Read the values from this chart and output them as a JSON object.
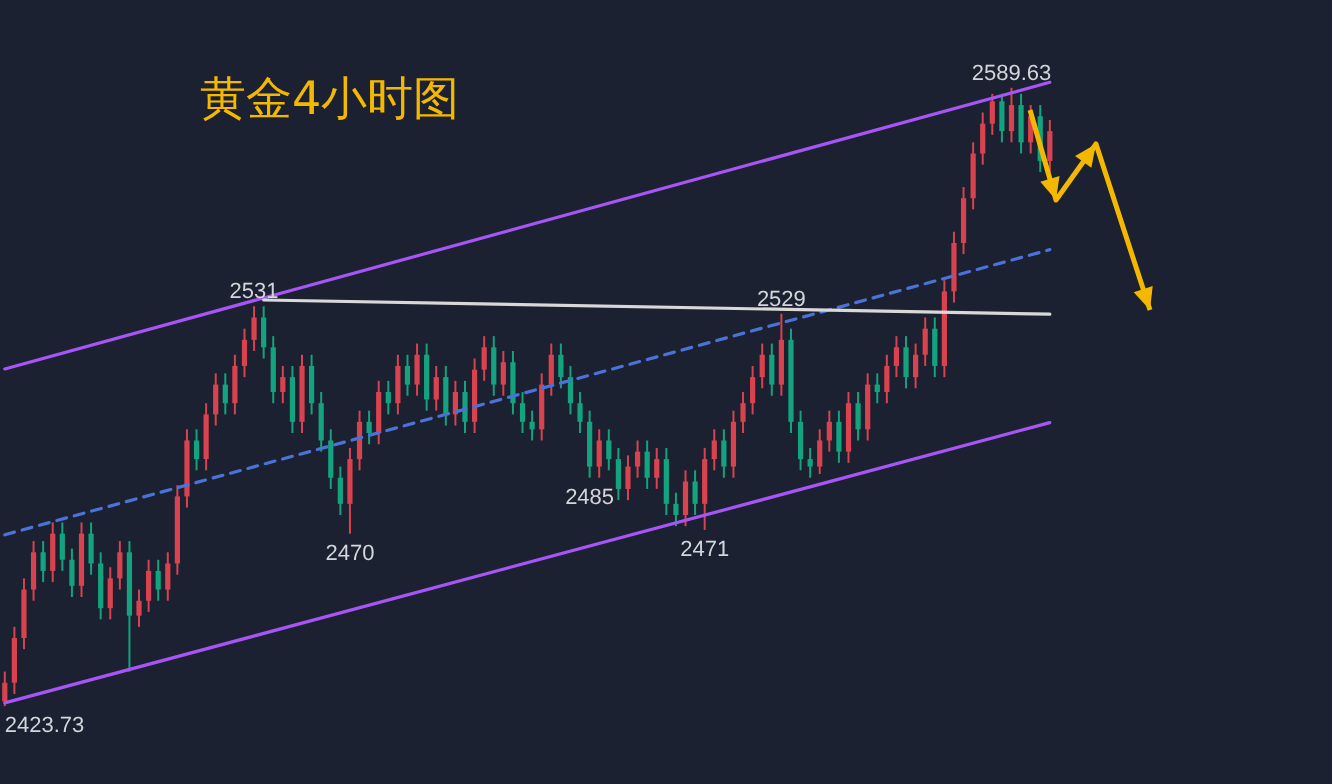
{
  "chart_data": {
    "type": "candlestick",
    "title": "黄金4小时图",
    "categories": [
      null,
      null,
      null,
      null,
      null,
      null,
      null,
      null,
      null,
      null,
      null,
      null,
      null,
      null,
      null,
      null,
      null,
      null,
      null,
      null,
      null,
      null,
      null,
      null,
      null,
      null,
      null,
      null,
      null,
      null,
      null,
      null,
      null,
      null,
      null,
      null,
      null,
      null,
      null,
      null,
      null,
      null,
      null,
      null,
      null,
      null,
      null,
      null,
      null,
      null,
      null,
      null,
      null,
      null,
      null,
      null,
      null,
      null,
      null,
      null,
      null,
      null,
      null,
      null,
      null,
      null,
      null,
      null,
      null,
      null,
      null,
      null,
      null,
      null,
      null,
      null,
      null,
      null,
      null,
      null,
      null,
      null,
      null,
      null,
      null,
      null,
      null,
      null,
      null,
      null,
      null,
      null,
      null,
      null,
      null,
      null,
      null,
      null,
      null,
      null,
      null,
      null,
      null,
      null,
      null,
      null,
      null,
      null,
      null,
      null
    ],
    "ohlc": [
      [
        2425,
        2433,
        2423.73,
        2430
      ],
      [
        2430,
        2445,
        2427,
        2442
      ],
      [
        2442,
        2458,
        2439,
        2455
      ],
      [
        2455,
        2468,
        2452,
        2465
      ],
      [
        2465,
        2468,
        2457,
        2460
      ],
      [
        2460,
        2473,
        2457,
        2470
      ],
      [
        2470,
        2473,
        2460,
        2463
      ],
      [
        2463,
        2466,
        2453,
        2456
      ],
      [
        2456,
        2473,
        2453,
        2470
      ],
      [
        2470,
        2473,
        2459,
        2462
      ],
      [
        2462,
        2465,
        2447,
        2450
      ],
      [
        2450,
        2461,
        2447,
        2458
      ],
      [
        2458,
        2468,
        2455,
        2465
      ],
      [
        2465,
        2468,
        2433,
        2448
      ],
      [
        2448,
        2455,
        2445,
        2452
      ],
      [
        2452,
        2463,
        2449,
        2460
      ],
      [
        2460,
        2463,
        2452,
        2455
      ],
      [
        2455,
        2465,
        2452,
        2462
      ],
      [
        2462,
        2483,
        2459,
        2480
      ],
      [
        2480,
        2498,
        2477,
        2495
      ],
      [
        2495,
        2498,
        2487,
        2490
      ],
      [
        2490,
        2505,
        2487,
        2502
      ],
      [
        2502,
        2513,
        2499,
        2510
      ],
      [
        2510,
        2513,
        2502,
        2505
      ],
      [
        2505,
        2518,
        2502,
        2515
      ],
      [
        2515,
        2525,
        2512,
        2522
      ],
      [
        2522,
        2531,
        2519,
        2528
      ],
      [
        2528,
        2531,
        2517,
        2520
      ],
      [
        2520,
        2523,
        2505,
        2508
      ],
      [
        2508,
        2515,
        2505,
        2512
      ],
      [
        2512,
        2515,
        2497,
        2500
      ],
      [
        2500,
        2518,
        2497,
        2515
      ],
      [
        2515,
        2518,
        2502,
        2505
      ],
      [
        2505,
        2508,
        2492,
        2495
      ],
      [
        2495,
        2498,
        2482,
        2485
      ],
      [
        2485,
        2488,
        2475,
        2478
      ],
      [
        2478,
        2493,
        2470,
        2490
      ],
      [
        2490,
        2503,
        2487,
        2500
      ],
      [
        2500,
        2503,
        2494,
        2497
      ],
      [
        2497,
        2511,
        2494,
        2508
      ],
      [
        2508,
        2511,
        2502,
        2505
      ],
      [
        2505,
        2518,
        2502,
        2515
      ],
      [
        2515,
        2518,
        2507,
        2510
      ],
      [
        2510,
        2521,
        2507,
        2518
      ],
      [
        2518,
        2521,
        2503,
        2506
      ],
      [
        2506,
        2515,
        2503,
        2512
      ],
      [
        2512,
        2515,
        2499,
        2502
      ],
      [
        2502,
        2511,
        2499,
        2508
      ],
      [
        2508,
        2511,
        2497,
        2500
      ],
      [
        2500,
        2517,
        2497,
        2514
      ],
      [
        2514,
        2523,
        2511,
        2520
      ],
      [
        2520,
        2523,
        2507,
        2510
      ],
      [
        2510,
        2519,
        2507,
        2516
      ],
      [
        2516,
        2519,
        2502,
        2505
      ],
      [
        2505,
        2508,
        2497,
        2500
      ],
      [
        2500,
        2503,
        2495,
        2498
      ],
      [
        2498,
        2513,
        2495,
        2510
      ],
      [
        2510,
        2521,
        2507,
        2518
      ],
      [
        2518,
        2521,
        2509,
        2512
      ],
      [
        2512,
        2515,
        2502,
        2505
      ],
      [
        2505,
        2508,
        2497,
        2500
      ],
      [
        2500,
        2503,
        2485,
        2488
      ],
      [
        2488,
        2498,
        2485,
        2495
      ],
      [
        2495,
        2498,
        2487,
        2490
      ],
      [
        2490,
        2493,
        2479,
        2482
      ],
      [
        2482,
        2491,
        2479,
        2488
      ],
      [
        2488,
        2495,
        2485,
        2492
      ],
      [
        2492,
        2495,
        2482,
        2485
      ],
      [
        2485,
        2493,
        2482,
        2490
      ],
      [
        2490,
        2493,
        2475,
        2478
      ],
      [
        2478,
        2481,
        2472,
        2475
      ],
      [
        2475,
        2487,
        2472,
        2484
      ],
      [
        2484,
        2487,
        2475,
        2478
      ],
      [
        2478,
        2493,
        2471,
        2490
      ],
      [
        2490,
        2498,
        2487,
        2495
      ],
      [
        2495,
        2498,
        2485,
        2488
      ],
      [
        2488,
        2503,
        2485,
        2500
      ],
      [
        2500,
        2508,
        2497,
        2505
      ],
      [
        2505,
        2515,
        2502,
        2512
      ],
      [
        2512,
        2521,
        2509,
        2518
      ],
      [
        2518,
        2521,
        2507,
        2510
      ],
      [
        2510,
        2529,
        2507,
        2522
      ],
      [
        2522,
        2525,
        2497,
        2500
      ],
      [
        2500,
        2503,
        2487,
        2490
      ],
      [
        2490,
        2493,
        2485,
        2488
      ],
      [
        2488,
        2498,
        2486,
        2495
      ],
      [
        2495,
        2503,
        2492,
        2500
      ],
      [
        2500,
        2503,
        2489,
        2492
      ],
      [
        2492,
        2508,
        2489,
        2505
      ],
      [
        2505,
        2508,
        2495,
        2498
      ],
      [
        2498,
        2513,
        2495,
        2510
      ],
      [
        2510,
        2513,
        2505,
        2508
      ],
      [
        2508,
        2518,
        2505,
        2515
      ],
      [
        2515,
        2523,
        2512,
        2520
      ],
      [
        2520,
        2523,
        2509,
        2512
      ],
      [
        2512,
        2521,
        2509,
        2518
      ],
      [
        2518,
        2528,
        2515,
        2525
      ],
      [
        2525,
        2528,
        2512,
        2515
      ],
      [
        2515,
        2538,
        2512,
        2535
      ],
      [
        2535,
        2551,
        2532,
        2548
      ],
      [
        2548,
        2563,
        2545,
        2560
      ],
      [
        2560,
        2575,
        2557,
        2572
      ],
      [
        2572,
        2583,
        2569,
        2580
      ],
      [
        2580,
        2588,
        2577,
        2586
      ],
      [
        2586,
        2588,
        2575,
        2578
      ],
      [
        2578,
        2589.63,
        2575,
        2585
      ],
      [
        2585,
        2588,
        2572,
        2575
      ],
      [
        2575,
        2585,
        2572,
        2582
      ],
      [
        2582,
        2585,
        2567,
        2570
      ],
      [
        2570,
        2581,
        2567,
        2578
      ]
    ],
    "series": [
      {
        "type": "line",
        "color": "#a855f7",
        "values": [
          2514.2,
          null,
          null,
          null,
          null,
          null,
          null,
          null,
          null,
          null,
          null,
          null,
          null,
          null,
          null,
          null,
          null,
          null,
          null,
          null,
          null,
          null,
          null,
          null,
          null,
          null,
          null,
          null,
          null,
          null,
          null,
          null,
          null,
          null,
          null,
          null,
          null,
          null,
          null,
          null,
          null,
          null,
          null,
          null,
          null,
          null,
          null,
          null,
          null,
          null,
          null,
          null,
          null,
          null,
          null,
          null,
          null,
          null,
          null,
          null,
          null,
          null,
          null,
          null,
          null,
          null,
          null,
          null,
          null,
          null,
          null,
          null,
          null,
          null,
          null,
          null,
          null,
          null,
          null,
          null,
          null,
          null,
          null,
          null,
          null,
          null,
          null,
          null,
          null,
          null,
          null,
          null,
          null,
          null,
          null,
          null,
          null,
          null,
          null,
          null,
          null,
          null,
          null,
          null,
          null,
          null,
          null,
          null,
          null,
          2591.1
        ]
      },
      {
        "type": "line",
        "color": "#a855f7",
        "values": [
          2424.6,
          null,
          null,
          null,
          null,
          null,
          null,
          null,
          null,
          null,
          null,
          null,
          null,
          null,
          null,
          null,
          null,
          null,
          null,
          null,
          null,
          null,
          null,
          null,
          null,
          null,
          null,
          null,
          null,
          null,
          null,
          null,
          null,
          null,
          null,
          null,
          null,
          null,
          null,
          null,
          null,
          null,
          null,
          null,
          null,
          null,
          null,
          null,
          null,
          null,
          null,
          null,
          null,
          null,
          null,
          null,
          null,
          null,
          null,
          null,
          null,
          null,
          null,
          null,
          null,
          null,
          null,
          null,
          null,
          null,
          null,
          null,
          null,
          null,
          null,
          null,
          null,
          null,
          null,
          null,
          null,
          null,
          null,
          null,
          null,
          null,
          null,
          null,
          null,
          null,
          null,
          null,
          null,
          null,
          null,
          null,
          null,
          null,
          null,
          null,
          null,
          null,
          null,
          null,
          null,
          null,
          null,
          null,
          null,
          2499.8
        ]
      },
      {
        "type": "line",
        "color": "#4a72d9",
        "line_style": "dashed",
        "values": [
          2469.7,
          null,
          null,
          null,
          null,
          null,
          null,
          null,
          null,
          null,
          null,
          null,
          null,
          null,
          null,
          null,
          null,
          null,
          null,
          null,
          null,
          null,
          null,
          null,
          null,
          null,
          null,
          null,
          null,
          null,
          null,
          null,
          null,
          null,
          null,
          null,
          null,
          null,
          null,
          null,
          null,
          null,
          null,
          null,
          null,
          null,
          null,
          null,
          null,
          null,
          null,
          null,
          null,
          null,
          null,
          null,
          null,
          null,
          null,
          null,
          null,
          null,
          null,
          null,
          null,
          null,
          null,
          null,
          null,
          null,
          null,
          null,
          null,
          null,
          null,
          null,
          null,
          null,
          null,
          null,
          null,
          null,
          null,
          null,
          null,
          null,
          null,
          null,
          null,
          null,
          null,
          null,
          null,
          null,
          null,
          null,
          null,
          null,
          null,
          null,
          null,
          null,
          null,
          null,
          null,
          null,
          null,
          null,
          null,
          2546.2
        ]
      },
      {
        "type": "line",
        "color": "#d8d8d8",
        "values": [
          null,
          null,
          null,
          null,
          null,
          null,
          null,
          null,
          null,
          null,
          null,
          null,
          null,
          null,
          null,
          null,
          null,
          null,
          null,
          null,
          null,
          null,
          null,
          null,
          null,
          null,
          null,
          2532.7,
          null,
          null,
          null,
          null,
          null,
          null,
          null,
          null,
          null,
          null,
          null,
          null,
          null,
          null,
          null,
          null,
          null,
          null,
          null,
          null,
          null,
          null,
          null,
          null,
          null,
          null,
          null,
          null,
          null,
          null,
          null,
          null,
          null,
          null,
          null,
          null,
          null,
          null,
          null,
          null,
          null,
          null,
          null,
          null,
          null,
          null,
          null,
          null,
          null,
          null,
          null,
          null,
          null,
          null,
          null,
          null,
          null,
          null,
          null,
          null,
          null,
          null,
          null,
          null,
          null,
          null,
          null,
          null,
          null,
          null,
          null,
          null,
          null,
          null,
          null,
          null,
          null,
          null,
          null,
          null,
          null,
          2528.9
        ]
      }
    ],
    "annotations": [
      {
        "text": "2589.63",
        "y": 2589.63
      },
      {
        "text": "2531",
        "y": 2531
      },
      {
        "text": "2529",
        "y": 2529
      },
      {
        "text": "2470",
        "y": 2470
      },
      {
        "text": "2471",
        "y": 2471
      },
      {
        "text": "2485",
        "y": 2485
      },
      "2423.73"
    ]
  }
}
